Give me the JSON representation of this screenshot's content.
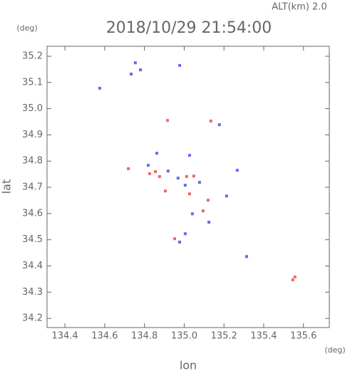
{
  "chart_data": {
    "type": "scatter",
    "title": "2018/10/29 21:54:00",
    "subtitle": "ALT(km) 2.0",
    "x_label": "lon",
    "y_label": "lat",
    "x_unit": "(deg)",
    "y_unit": "(deg)",
    "xlim": [
      134.31,
      135.73
    ],
    "ylim": [
      34.165,
      35.238
    ],
    "xticks": [
      {
        "value": 134.4,
        "label": "134.4"
      },
      {
        "value": 134.6,
        "label": "134.6"
      },
      {
        "value": 134.8,
        "label": "134.8"
      },
      {
        "value": 135.0,
        "label": "135.0"
      },
      {
        "value": 135.2,
        "label": "135.2"
      },
      {
        "value": 135.4,
        "label": "135.4"
      },
      {
        "value": 135.6,
        "label": "135.6"
      }
    ],
    "yticks": [
      {
        "value": 34.2,
        "label": "34.2"
      },
      {
        "value": 34.3,
        "label": "34.3"
      },
      {
        "value": 34.4,
        "label": "34.4"
      },
      {
        "value": 34.5,
        "label": "34.5"
      },
      {
        "value": 34.6,
        "label": "34.6"
      },
      {
        "value": 34.7,
        "label": "34.7"
      },
      {
        "value": 34.8,
        "label": "34.8"
      },
      {
        "value": 34.9,
        "label": "34.9"
      },
      {
        "value": 35.0,
        "label": "35.0"
      },
      {
        "value": 35.1,
        "label": "35.1"
      },
      {
        "value": 35.2,
        "label": "35.2"
      }
    ],
    "series": [
      {
        "color": "#f06868",
        "x": [
          134.916,
          135.134,
          134.719,
          134.855,
          134.876,
          134.905,
          135.048,
          135.027,
          135.095,
          135.12,
          134.952,
          135.557,
          135.546,
          134.826,
          135.012
        ],
        "values": [
          34.955,
          34.953,
          34.771,
          34.76,
          34.741,
          34.686,
          34.743,
          34.675,
          34.61,
          34.651,
          34.504,
          34.358,
          34.347,
          34.752,
          34.741
        ]
      },
      {
        "color": "#6868f0",
        "x": [
          134.754,
          134.733,
          134.78,
          134.575,
          134.977,
          134.862,
          134.819,
          134.919,
          134.969,
          135.005,
          135.027,
          135.077,
          135.041,
          135.124,
          135.005,
          134.977,
          135.267,
          135.314,
          135.177,
          135.213
        ],
        "values": [
          35.175,
          35.132,
          35.148,
          35.078,
          35.165,
          34.83,
          34.784,
          34.762,
          34.735,
          34.708,
          34.822,
          34.719,
          34.599,
          34.567,
          34.523,
          34.491,
          34.765,
          34.436,
          34.939,
          34.667
        ]
      }
    ]
  }
}
